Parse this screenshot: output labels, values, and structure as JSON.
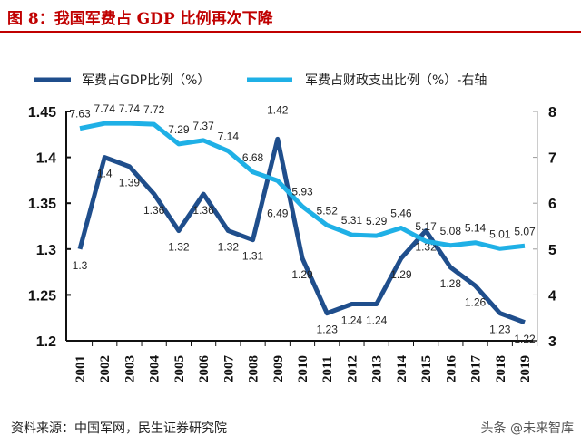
{
  "title": "图 8：我国军费占 GDP 比例再次下降",
  "source": "资料来源：中国军网，民生证券研究院",
  "watermark": "头条 @未来智库",
  "chart_data": {
    "type": "line",
    "title": "",
    "x": [
      "2001",
      "2002",
      "2003",
      "2004",
      "2005",
      "2006",
      "2007",
      "2008",
      "2009",
      "2010",
      "2011",
      "2012",
      "2013",
      "2014",
      "2015",
      "2016",
      "2017",
      "2018",
      "2019"
    ],
    "series": [
      {
        "name": "军费占GDP比例（%）",
        "axis": "left",
        "color": "#1f4e8c",
        "values": [
          1.3,
          1.4,
          1.39,
          1.36,
          1.32,
          1.36,
          1.32,
          1.31,
          1.42,
          1.29,
          1.23,
          1.24,
          1.24,
          1.29,
          1.32,
          1.28,
          1.26,
          1.23,
          1.22
        ]
      },
      {
        "name": "军费占财政支出比例（%）-右轴",
        "axis": "right",
        "color": "#1fb0e6",
        "values": [
          7.63,
          7.74,
          7.74,
          7.72,
          7.29,
          7.37,
          7.14,
          6.68,
          6.49,
          5.93,
          5.52,
          5.31,
          5.29,
          5.46,
          5.17,
          5.08,
          5.14,
          5.01,
          5.07
        ]
      }
    ],
    "y_left": {
      "lim": [
        1.2,
        1.45
      ],
      "ticks": [
        "1.2",
        "1.25",
        "1.3",
        "1.35",
        "1.4",
        "1.45"
      ]
    },
    "y_right": {
      "lim": [
        3,
        8
      ],
      "ticks": [
        "3",
        "4",
        "5",
        "6",
        "7",
        "8"
      ]
    },
    "grid": false,
    "legend": "top"
  }
}
